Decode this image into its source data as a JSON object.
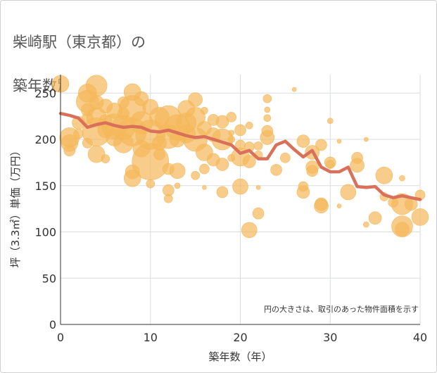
{
  "title": {
    "line1": "柴崎駅（東京都）の",
    "line2": "築年数別中古マンション価格"
  },
  "colors": {
    "bubble": "#f5b85a",
    "line": "#d9705a",
    "grid": "#d9dde3",
    "plot_bg": "#ffffff"
  },
  "chart_data": {
    "type": "scatter",
    "title": "柴崎駅（東京都）の築年数別中古マンション価格",
    "xlabel": "築年数（年）",
    "ylabel": "坪（3.3㎡）単価（万円）",
    "xlim": [
      0,
      40
    ],
    "ylim": [
      0,
      270
    ],
    "xticks": [
      "0",
      "10",
      "20",
      "30",
      "40"
    ],
    "yticks": [
      "0",
      "50",
      "100",
      "150",
      "200",
      "250"
    ],
    "grid": true,
    "annotation": "円の大きさは、取引のあった物件面積を示す",
    "series": [
      {
        "type": "line",
        "x": [
          0,
          1,
          2,
          3,
          4,
          5,
          6,
          7,
          8,
          9,
          10,
          11,
          12,
          13,
          14,
          15,
          16,
          17,
          18,
          19,
          20,
          21,
          22,
          23,
          24,
          25,
          26,
          27,
          28,
          29,
          30,
          31,
          32,
          33,
          34,
          35,
          36,
          37,
          38,
          39,
          40
        ],
        "values": [
          228,
          226,
          223,
          213,
          216,
          218,
          215,
          213,
          214,
          213,
          209,
          208,
          210,
          207,
          204,
          202,
          203,
          200,
          197,
          194,
          185,
          188,
          179,
          179,
          194,
          198,
          189,
          181,
          188,
          170,
          165,
          165,
          170,
          149,
          148,
          149,
          140,
          137,
          139,
          137,
          135
        ]
      },
      {
        "type": "bubble",
        "points": [
          [
            0,
            260,
            12
          ],
          [
            1,
            202,
            14
          ],
          [
            1,
            196,
            12
          ],
          [
            1,
            188,
            8
          ],
          [
            2,
            218,
            9
          ],
          [
            2,
            206,
            7
          ],
          [
            3,
            250,
            13
          ],
          [
            3,
            241,
            16
          ],
          [
            3,
            232,
            9
          ],
          [
            3,
            223,
            8
          ],
          [
            3,
            196,
            7
          ],
          [
            4,
            258,
            15
          ],
          [
            4,
            240,
            10
          ],
          [
            4,
            224,
            14
          ],
          [
            4,
            208,
            20
          ],
          [
            4,
            184,
            12
          ],
          [
            5,
            236,
            10
          ],
          [
            5,
            220,
            9
          ],
          [
            5,
            210,
            11
          ],
          [
            5,
            179,
            6
          ],
          [
            6,
            231,
            11
          ],
          [
            6,
            214,
            18
          ],
          [
            6,
            202,
            12
          ],
          [
            7,
            240,
            8
          ],
          [
            7,
            228,
            8
          ],
          [
            7,
            213,
            17
          ],
          [
            7,
            196,
            14
          ],
          [
            8,
            251,
            12
          ],
          [
            8,
            233,
            19
          ],
          [
            8,
            208,
            20
          ],
          [
            8,
            165,
            10
          ],
          [
            8,
            158,
            12
          ],
          [
            9,
            244,
            10
          ],
          [
            9,
            218,
            16
          ],
          [
            9,
            190,
            12
          ],
          [
            10,
            235,
            11
          ],
          [
            10,
            205,
            21
          ],
          [
            10,
            176,
            26
          ],
          [
            10,
            152,
            6
          ],
          [
            11,
            224,
            14
          ],
          [
            11,
            196,
            10
          ],
          [
            11,
            184,
            8
          ],
          [
            12,
            222,
            19
          ],
          [
            12,
            203,
            17
          ],
          [
            12,
            168,
            8
          ],
          [
            12,
            145,
            8
          ],
          [
            12,
            136,
            6
          ],
          [
            13,
            213,
            18
          ],
          [
            13,
            200,
            11
          ],
          [
            13,
            166,
            11
          ],
          [
            13,
            150,
            4
          ],
          [
            14,
            233,
            12
          ],
          [
            14,
            218,
            14
          ],
          [
            14,
            206,
            13
          ],
          [
            15,
            243,
            10
          ],
          [
            15,
            224,
            14
          ],
          [
            15,
            200,
            17
          ],
          [
            15,
            161,
            6
          ],
          [
            16,
            231,
            5
          ],
          [
            16,
            212,
            10
          ],
          [
            16,
            186,
            12
          ],
          [
            16,
            168,
            7
          ],
          [
            16,
            148,
            3
          ],
          [
            17,
            221,
            8
          ],
          [
            17,
            205,
            10
          ],
          [
            17,
            178,
            9
          ],
          [
            18,
            219,
            9
          ],
          [
            18,
            200,
            15
          ],
          [
            18,
            173,
            9
          ],
          [
            18,
            143,
            8
          ],
          [
            19,
            224,
            7
          ],
          [
            19,
            207,
            4
          ],
          [
            19,
            200,
            5
          ],
          [
            19,
            180,
            5
          ],
          [
            20,
            210,
            8
          ],
          [
            20,
            194,
            7
          ],
          [
            20,
            181,
            13
          ],
          [
            20,
            149,
            11
          ],
          [
            21,
            215,
            5
          ],
          [
            21,
            192,
            7
          ],
          [
            21,
            176,
            9
          ],
          [
            21,
            102,
            11
          ],
          [
            22,
            193,
            6
          ],
          [
            22,
            183,
            6
          ],
          [
            22,
            148,
            3
          ],
          [
            22,
            120,
            8
          ],
          [
            23,
            244,
            6
          ],
          [
            23,
            232,
            4
          ],
          [
            23,
            223,
            5
          ],
          [
            23,
            209,
            8
          ],
          [
            23,
            202,
            10
          ],
          [
            24,
            167,
            8
          ],
          [
            25,
            180,
            7
          ],
          [
            26,
            254,
            3
          ],
          [
            27,
            198,
            9
          ],
          [
            27,
            149,
            7
          ],
          [
            27,
            143,
            9
          ],
          [
            28,
            186,
            10
          ],
          [
            28,
            170,
            9
          ],
          [
            28,
            166,
            8
          ],
          [
            29,
            194,
            8
          ],
          [
            29,
            130,
            9
          ],
          [
            29,
            128,
            10
          ],
          [
            30,
            220,
            4
          ],
          [
            30,
            175,
            8
          ],
          [
            30,
            173,
            6
          ],
          [
            31,
            198,
            3
          ],
          [
            31,
            128,
            3
          ],
          [
            32,
            143,
            11
          ],
          [
            33,
            180,
            8
          ],
          [
            33,
            172,
            10
          ],
          [
            34,
            200,
            3
          ],
          [
            34,
            108,
            4
          ],
          [
            35,
            115,
            9
          ],
          [
            36,
            161,
            12
          ],
          [
            36,
            138,
            6
          ],
          [
            37,
            132,
            7
          ],
          [
            38,
            158,
            4
          ],
          [
            38,
            130,
            15
          ],
          [
            38,
            106,
            15
          ],
          [
            38,
            103,
            10
          ],
          [
            39,
            130,
            9
          ],
          [
            40,
            140,
            7
          ],
          [
            40,
            116,
            12
          ]
        ]
      }
    ]
  }
}
